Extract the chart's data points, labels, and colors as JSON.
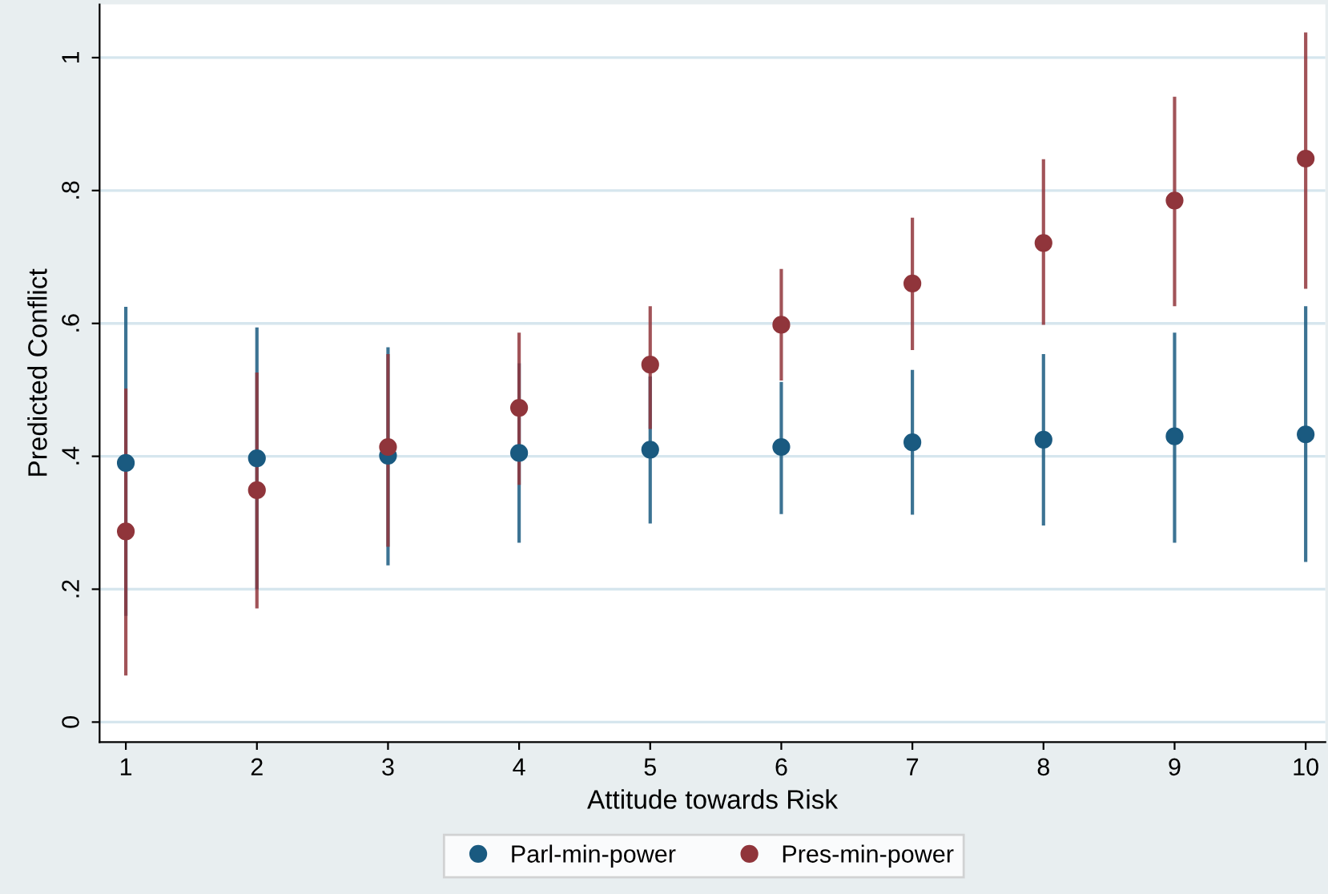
{
  "chart_data": {
    "type": "scatter",
    "xlabel": "Attitude towards Risk",
    "ylabel": "Predicted Conflict",
    "x": [
      1,
      2,
      3,
      4,
      5,
      6,
      7,
      8,
      9,
      10
    ],
    "series": [
      {
        "name": "Parl-min-power",
        "color": "#1a5a80",
        "values": [
          0.39,
          0.397,
          0.401,
          0.405,
          0.41,
          0.414,
          0.421,
          0.425,
          0.43,
          0.433
        ],
        "errors": [
          [
            0.16,
            0.625
          ],
          [
            0.2,
            0.594
          ],
          [
            0.236,
            0.564
          ],
          [
            0.27,
            0.54
          ],
          [
            0.299,
            0.52
          ],
          [
            0.313,
            0.512
          ],
          [
            0.312,
            0.53
          ],
          [
            0.296,
            0.554
          ],
          [
            0.27,
            0.586
          ],
          [
            0.241,
            0.626
          ]
        ]
      },
      {
        "name": "Pres-min-power",
        "color": "#90353b",
        "values": [
          0.287,
          0.349,
          0.414,
          0.473,
          0.538,
          0.598,
          0.66,
          0.721,
          0.785,
          0.848
        ],
        "errors": [
          [
            0.07,
            0.502
          ],
          [
            0.171,
            0.526
          ],
          [
            0.264,
            0.554
          ],
          [
            0.357,
            0.586
          ],
          [
            0.441,
            0.626
          ],
          [
            0.514,
            0.682
          ],
          [
            0.56,
            0.759
          ],
          [
            0.598,
            0.847
          ],
          [
            0.626,
            0.941
          ],
          [
            0.652,
            1.038
          ]
        ]
      }
    ],
    "xlim": [
      0.8,
      10.15
    ],
    "ylim": [
      -0.03,
      1.08
    ],
    "xticks": [
      1,
      2,
      3,
      4,
      5,
      6,
      7,
      8,
      9,
      10
    ],
    "yticks": [
      {
        "value": 0,
        "label": "0"
      },
      {
        "value": 0.2,
        "label": ".2"
      },
      {
        "value": 0.4,
        "label": ".4"
      },
      {
        "value": 0.6,
        "label": ".6"
      },
      {
        "value": 0.8,
        "label": ".8"
      },
      {
        "value": 1,
        "label": "1"
      }
    ],
    "grid": "y",
    "legend": "bottom",
    "marker": "circle"
  }
}
